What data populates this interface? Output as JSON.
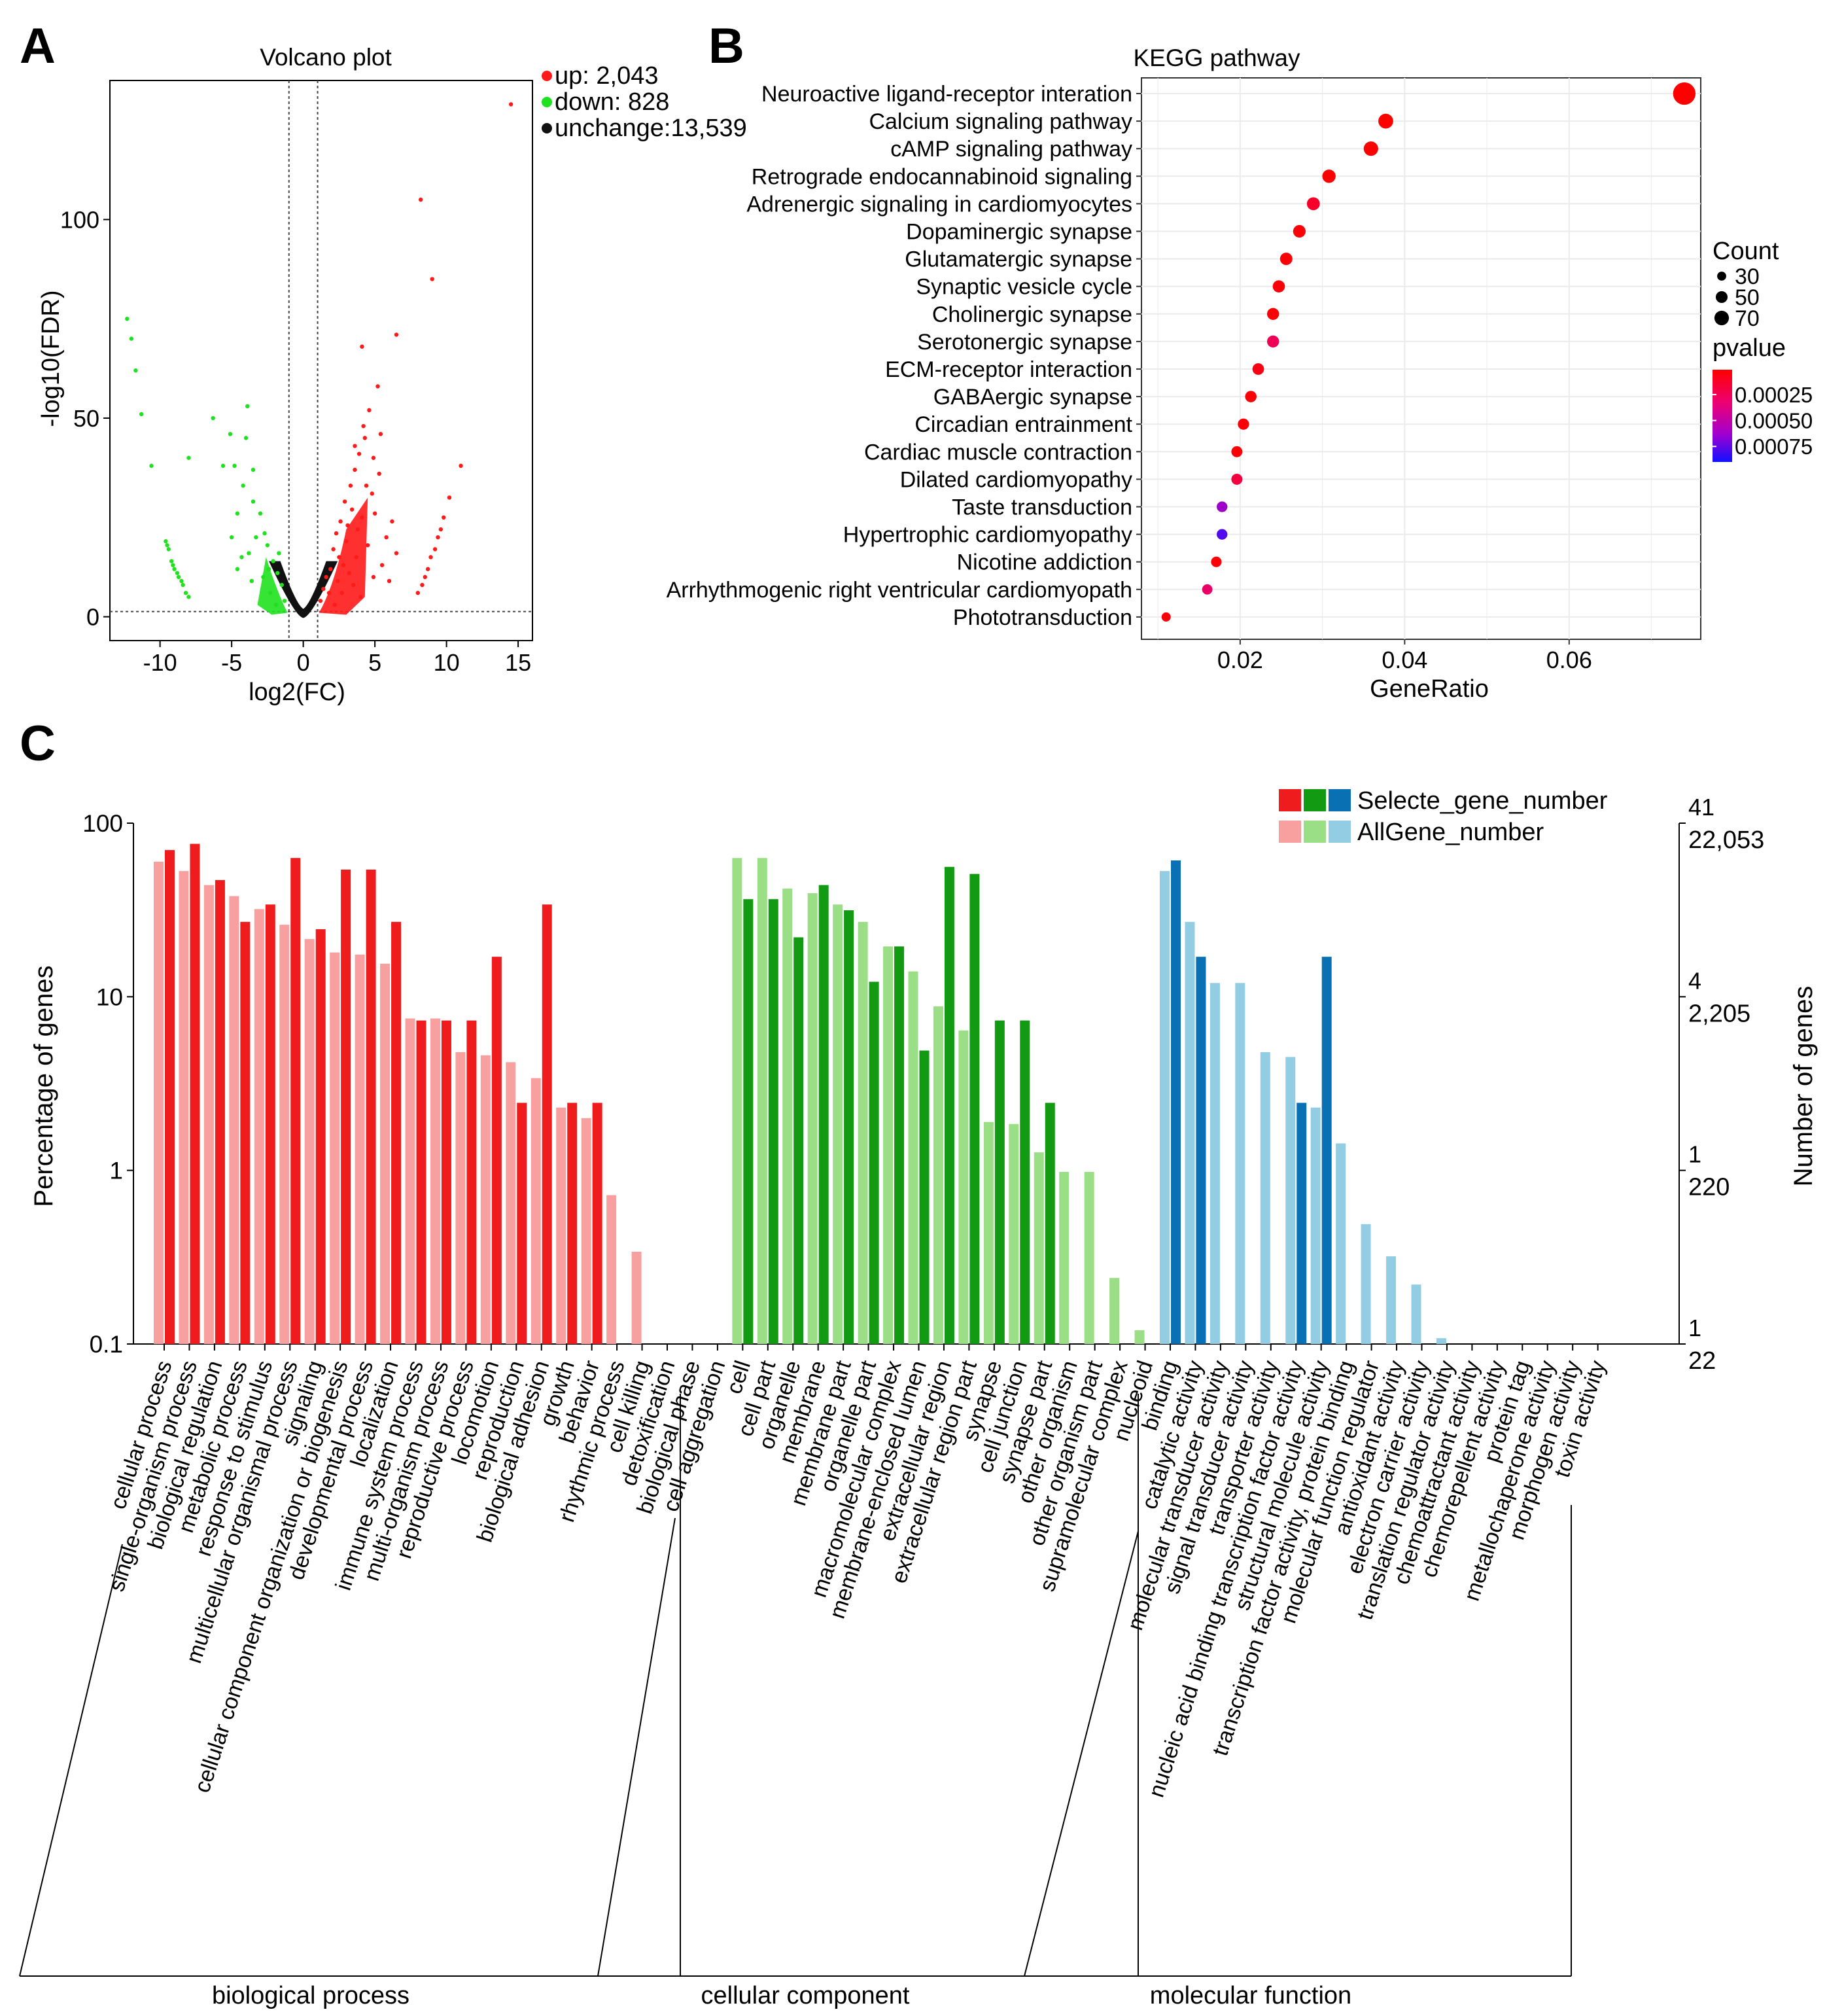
{
  "colors": {
    "up": "#ff1a1a",
    "down": "#1fe11f",
    "unchange": "#111111",
    "bp_sel": "#ee1c1c",
    "bp_all": "#f8a0a0",
    "cc_sel": "#129a12",
    "cc_all": "#9ade85",
    "mf_sel": "#0a70b4",
    "mf_all": "#92cde3",
    "right_axis_top": "#1a1ad8",
    "plot_panel": "#ffffff",
    "grid": "#ebebeb"
  },
  "panel_labels": {
    "a": "A",
    "b": "B",
    "c": "C"
  },
  "chart_data": [
    {
      "id": "volcano",
      "type": "scatter",
      "title": "Volcano plot",
      "xlabel": "log2(FC)",
      "ylabel": "-log10(FDR)",
      "xlim": [
        -13.5,
        16
      ],
      "ylim": [
        -6,
        135
      ],
      "xticks": [
        -10,
        -5,
        0,
        5,
        10,
        15
      ],
      "yticks": [
        0,
        50,
        100
      ],
      "thresholds": {
        "log2fc": [
          -1,
          1
        ],
        "neg_log10_fdr": 1.3
      },
      "legend": [
        {
          "key": "up",
          "label": "up: 2,043"
        },
        {
          "key": "down",
          "label": "down: 828"
        },
        {
          "key": "unchange",
          "label": "unchange:13,539"
        }
      ],
      "series": [
        {
          "name": "up",
          "points": [
            [
              14.5,
              129
            ],
            [
              8.2,
              105
            ],
            [
              9,
              85
            ],
            [
              6.5,
              71
            ],
            [
              11,
              38
            ],
            [
              10.2,
              30
            ],
            [
              4.1,
              68
            ],
            [
              5.2,
              58
            ],
            [
              4.6,
              52
            ],
            [
              4.3,
              45
            ],
            [
              3.9,
              41
            ],
            [
              3.6,
              37
            ],
            [
              5.3,
              36
            ],
            [
              3.3,
              33
            ],
            [
              4.8,
              31
            ],
            [
              2.9,
              29
            ],
            [
              3.4,
              27
            ],
            [
              4.1,
              25
            ],
            [
              2.6,
              24
            ],
            [
              2.3,
              21
            ],
            [
              3,
              19
            ],
            [
              2.1,
              17
            ],
            [
              3.8,
              22
            ],
            [
              5,
              26
            ],
            [
              4.4,
              33
            ],
            [
              3.7,
              15
            ],
            [
              2.8,
              13
            ],
            [
              1.9,
              12
            ],
            [
              1.6,
              10
            ],
            [
              2.4,
              9
            ],
            [
              1.4,
              7
            ],
            [
              1.8,
              6
            ],
            [
              1.2,
              4
            ],
            [
              2.2,
              3
            ],
            [
              4.5,
              18
            ],
            [
              5.8,
              20
            ],
            [
              6.2,
              24
            ],
            [
              5.5,
              13
            ],
            [
              3.2,
              11
            ],
            [
              2.5,
              15
            ],
            [
              4.9,
              10
            ],
            [
              6.5,
              16
            ],
            [
              3.5,
              8
            ],
            [
              2.7,
              6
            ],
            [
              4,
              5
            ],
            [
              6,
              9
            ],
            [
              3.1,
              23
            ],
            [
              3.6,
              43
            ],
            [
              4.2,
              48
            ],
            [
              4.9,
              40
            ],
            [
              5.4,
              46
            ],
            [
              9.6,
              22
            ],
            [
              9.2,
              17
            ],
            [
              8.7,
              12
            ],
            [
              8.3,
              8
            ],
            [
              8,
              6
            ],
            [
              9.8,
              25
            ],
            [
              9.4,
              20
            ],
            [
              8.9,
              15
            ],
            [
              8.5,
              10
            ]
          ]
        },
        {
          "name": "down",
          "points": [
            [
              -12.3,
              75
            ],
            [
              -12,
              70
            ],
            [
              -11.7,
              62
            ],
            [
              -11.3,
              51
            ],
            [
              -10.6,
              38
            ],
            [
              -8,
              40
            ],
            [
              -6.3,
              50
            ],
            [
              -5.1,
              46
            ],
            [
              -4,
              45
            ],
            [
              -3.9,
              53
            ],
            [
              -5.6,
              38
            ],
            [
              -4.8,
              38
            ],
            [
              -3.5,
              37
            ],
            [
              -4.2,
              33
            ],
            [
              -3.5,
              29
            ],
            [
              -4.6,
              26
            ],
            [
              -3,
              26
            ],
            [
              -5,
              20
            ],
            [
              -3.3,
              20
            ],
            [
              -2.5,
              18
            ],
            [
              -3.8,
              16
            ],
            [
              -2.1,
              14
            ],
            [
              -4.3,
              15
            ],
            [
              -1.8,
              11
            ],
            [
              -2.8,
              10
            ],
            [
              -1.5,
              8
            ],
            [
              -3.6,
              9
            ],
            [
              -2.3,
              6
            ],
            [
              -1.3,
              4
            ],
            [
              -1.9,
              3
            ],
            [
              -4.6,
              12
            ],
            [
              -2.7,
              21
            ],
            [
              -1.7,
              16
            ],
            [
              -2.4,
              12
            ],
            [
              -9.6,
              19
            ],
            [
              -9.4,
              17
            ],
            [
              -9.2,
              14
            ],
            [
              -9,
              12
            ],
            [
              -8.7,
              10
            ],
            [
              -8.4,
              8
            ],
            [
              -8.2,
              6
            ],
            [
              -8,
              5
            ],
            [
              -9.5,
              18
            ],
            [
              -9.1,
              13
            ],
            [
              -8.8,
              11
            ],
            [
              -8.5,
              9
            ]
          ]
        }
      ]
    },
    {
      "id": "kegg",
      "type": "scatter",
      "title": "KEGG pathway",
      "xlabel": "GeneRatio",
      "xlim": [
        0.008,
        0.076
      ],
      "xticks": [
        0.02,
        0.04,
        0.06
      ],
      "xtick_labels": [
        "0.02",
        "0.04",
        "0.06"
      ],
      "categories": [
        "Neuroactive ligand-receptor interation",
        "Calcium signaling pathway",
        "cAMP signaling pathway",
        "Retrograde endocannabinoid signaling",
        "Adrenergic signaling in cardiomyocytes",
        "Dopaminergic synapse",
        "Glutamatergic synapse",
        "Synaptic vesicle cycle",
        "Cholinergic synapse",
        "Serotonergic synapse",
        "ECM-receptor interaction",
        "GABAergic synapse",
        "Circadian entrainment",
        "Cardiac muscle contraction",
        "Dilated cardiomyopathy",
        "Taste transduction",
        "Hypertrophic cardiomyopathy",
        "Nicotine addiction",
        "Arrhythmogenic right ventricular cardiomyopath",
        "Phototransduction"
      ],
      "gene_ratio": [
        0.074,
        0.0377,
        0.0359,
        0.0308,
        0.0289,
        0.0272,
        0.0256,
        0.0247,
        0.024,
        0.024,
        0.0222,
        0.0213,
        0.0204,
        0.0196,
        0.0196,
        0.0178,
        0.0178,
        0.0171,
        0.016,
        0.011
      ],
      "count": [
        82,
        42,
        40,
        34,
        32,
        30,
        29,
        28,
        27,
        27,
        25,
        24,
        23,
        22,
        22,
        20,
        20,
        19,
        18,
        12
      ],
      "pvalue": [
        1e-05,
        1e-05,
        1e-05,
        1e-05,
        0.00012,
        3e-05,
        3e-05,
        3e-05,
        3e-05,
        0.00024,
        6e-05,
        3e-05,
        3e-05,
        3e-05,
        0.00018,
        0.00055,
        0.00075,
        3e-05,
        0.00028,
        3e-05
      ],
      "legend": {
        "count_title": "Count",
        "count_values": [
          30,
          50,
          70
        ],
        "count_labels": [
          "30",
          "50",
          "70"
        ],
        "pvalue_title": "pvalue",
        "pvalue_range": [
          1e-05,
          0.0009
        ],
        "pvalue_ticks": [
          0.00025,
          0.0005,
          0.00075
        ],
        "pvalue_labels": [
          "0.00025",
          "0.00050",
          "0.00075"
        ]
      },
      "legend_placement": "right"
    },
    {
      "id": "go",
      "type": "bar",
      "ylabel": "Percentage of genes",
      "y2label": "Number of genes",
      "yscale": "log",
      "ylim": [
        0.1,
        100
      ],
      "yticks": [
        0.1,
        1,
        10,
        100
      ],
      "ytick_labels": [
        "0.1",
        "1",
        "10",
        "100"
      ],
      "right_axis_ticks": [
        {
          "y": 100,
          "selected": "41",
          "all": "22,053"
        },
        {
          "y": 10,
          "selected": "4",
          "all": "2,205"
        },
        {
          "y": 1,
          "selected": "1",
          "all": "220"
        },
        {
          "y": 0.1,
          "selected": "1",
          "all": "22"
        }
      ],
      "legend": {
        "selected": "Selecte_gene_number",
        "all": "AllGene_number"
      },
      "legend_placement": "top-right",
      "groups": [
        {
          "name": "biological process",
          "key": "bp",
          "categories": [
            "cellular process",
            "single-organism process",
            "biological regulation",
            "metabolic process",
            "response to stimulus",
            "multicellular organismal process",
            "signaling",
            "cellular component organization or biogenesis",
            "developmental process",
            "localization",
            "immune system process",
            "multi-organism process",
            "reproductive process",
            "locomotion",
            "reproduction",
            "biological adhesion",
            "growth",
            "behavior",
            "rhythmic process",
            "cell killing",
            "detoxification",
            "biological phase",
            "cell aggregation"
          ],
          "all": [
            60,
            53,
            44,
            38,
            32,
            26,
            21.5,
            18,
            17.5,
            15.5,
            7.5,
            7.5,
            4.8,
            4.6,
            4.2,
            3.4,
            2.3,
            2,
            0.72,
            0.34,
            null,
            null,
            null
          ],
          "selected": [
            70,
            76,
            47,
            27,
            34,
            63,
            24.5,
            54,
            54,
            27,
            7.3,
            7.3,
            7.3,
            17,
            2.45,
            34,
            2.45,
            2.45,
            null,
            null,
            null,
            null,
            null
          ]
        },
        {
          "name": "cellular component",
          "key": "cc",
          "categories": [
            "cell",
            "cell part",
            "organelle",
            "membrane",
            "membrane part",
            "organelle part",
            "macromolecular complex",
            "membrane-enclosed lumen",
            "extracellular region",
            "extracellular region part",
            "synapse",
            "cell junction",
            "synapse part",
            "other organism",
            "other organism part",
            "supramolecular complex",
            "nucleoid"
          ],
          "all": [
            63,
            63,
            42,
            39.5,
            34,
            27,
            19.5,
            14,
            8.8,
            6.4,
            1.9,
            1.85,
            1.27,
            0.98,
            0.98,
            0.24,
            0.12
          ],
          "selected": [
            36.5,
            36.5,
            22,
            44,
            31.5,
            12.2,
            19.5,
            4.9,
            56,
            51,
            7.3,
            7.3,
            2.45,
            null,
            null,
            null,
            null
          ]
        },
        {
          "name": "molecular function",
          "key": "mf",
          "categories": [
            "binding",
            "catalytic activity",
            "molecular transducer activity",
            "signal transducer activity",
            "transporter activity",
            "nucleic acid binding transcription factor activity",
            "structural molecule activity",
            "transcription factor activity, protein binding",
            "molecular function regulator",
            "antioxidant activity",
            "electron carrier activity",
            "translation regulator activity",
            "chemoattractant activity",
            "chemorepellent activity",
            "protein tag",
            "metallochaperone activity",
            "morphogen activity",
            "toxin activity"
          ],
          "all": [
            53,
            27,
            12,
            12,
            4.8,
            4.5,
            2.3,
            1.43,
            0.49,
            0.32,
            0.22,
            0.108,
            null,
            null,
            null,
            null,
            null,
            null
          ],
          "selected": [
            61,
            17,
            null,
            null,
            null,
            2.45,
            17,
            null,
            null,
            null,
            null,
            null,
            null,
            null,
            null,
            null,
            null,
            null
          ]
        }
      ]
    }
  ]
}
